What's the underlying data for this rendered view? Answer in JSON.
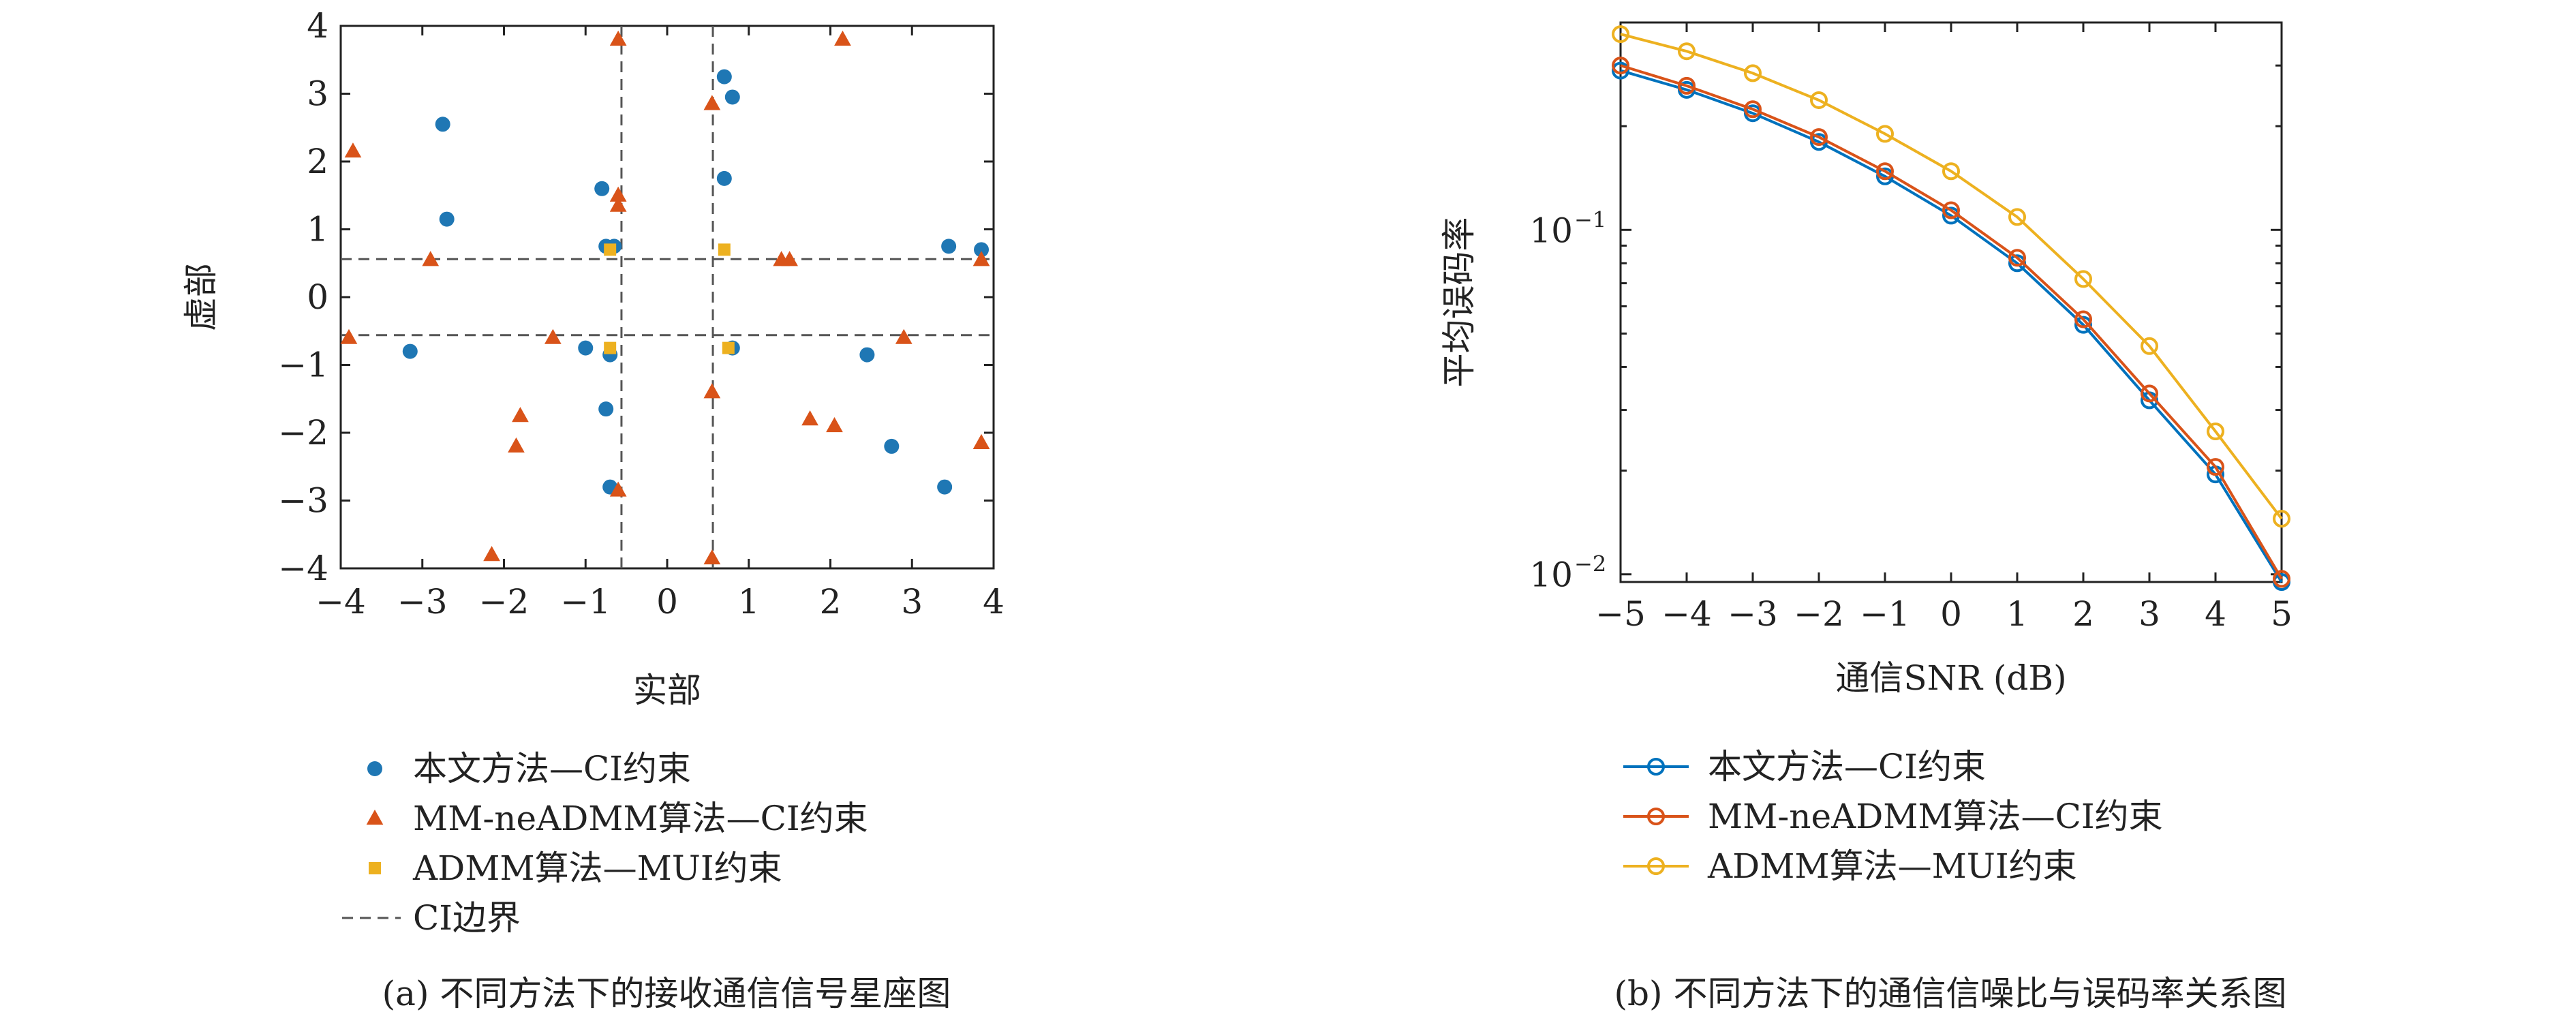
{
  "colors": {
    "blue": "#1f77b4",
    "orange": "#d95319",
    "yellow": "#edb120",
    "teal": "#0072bd",
    "dashed": "#555555"
  },
  "chart_data": [
    {
      "type": "scatter",
      "title": "",
      "caption": "(a) 不同方法下的接收通信信号星座图",
      "xlabel": "实部",
      "ylabel": "虚部",
      "xlim": [
        -4,
        4
      ],
      "ylim": [
        -4,
        4
      ],
      "xticks": [
        -4,
        -3,
        -2,
        -1,
        0,
        1,
        2,
        3,
        4
      ],
      "yticks": [
        -4,
        -3,
        -2,
        -1,
        0,
        1,
        2,
        3,
        4
      ],
      "xtick_labels": [
        "−4",
        "−3",
        "−2",
        "−1",
        "0",
        "1",
        "2",
        "3",
        "4"
      ],
      "ytick_labels": [
        "−4",
        "−3",
        "−2",
        "−1",
        "0",
        "1",
        "2",
        "3",
        "4"
      ],
      "grid": false,
      "legend_position": "below",
      "series": [
        {
          "name": "本文方法—CI约束",
          "marker": "circle",
          "color": "#1f77b4",
          "points": [
            [
              -2.75,
              2.55
            ],
            [
              -2.7,
              1.15
            ],
            [
              -0.8,
              1.6
            ],
            [
              -0.75,
              0.75
            ],
            [
              -0.65,
              0.75
            ],
            [
              0.7,
              3.25
            ],
            [
              0.8,
              2.95
            ],
            [
              0.7,
              1.75
            ],
            [
              3.45,
              0.75
            ],
            [
              3.85,
              0.7
            ],
            [
              -3.15,
              -0.8
            ],
            [
              -1.0,
              -0.75
            ],
            [
              -0.7,
              -0.85
            ],
            [
              -0.75,
              -1.65
            ],
            [
              -0.7,
              -2.8
            ],
            [
              0.8,
              -0.75
            ],
            [
              2.45,
              -0.85
            ],
            [
              2.75,
              -2.2
            ],
            [
              3.4,
              -2.8
            ]
          ]
        },
        {
          "name": "MM-neADMM算法—CI约束",
          "marker": "triangle",
          "color": "#d95319",
          "points": [
            [
              -3.85,
              2.15
            ],
            [
              -2.9,
              0.55
            ],
            [
              -0.6,
              3.8
            ],
            [
              -0.6,
              1.5
            ],
            [
              -0.6,
              1.35
            ],
            [
              0.55,
              2.85
            ],
            [
              2.15,
              3.8
            ],
            [
              1.4,
              0.55
            ],
            [
              1.5,
              0.55
            ],
            [
              3.85,
              0.55
            ],
            [
              -3.9,
              -0.6
            ],
            [
              -1.4,
              -0.6
            ],
            [
              -1.8,
              -1.75
            ],
            [
              -1.85,
              -2.2
            ],
            [
              -2.15,
              -3.8
            ],
            [
              -0.6,
              -2.85
            ],
            [
              0.55,
              -1.4
            ],
            [
              0.55,
              -3.85
            ],
            [
              1.75,
              -1.8
            ],
            [
              2.05,
              -1.9
            ],
            [
              2.9,
              -0.6
            ],
            [
              3.85,
              -2.15
            ]
          ]
        },
        {
          "name": "ADMM算法—MUI约束",
          "marker": "square",
          "color": "#edb120",
          "points": [
            [
              -0.7,
              0.7
            ],
            [
              0.7,
              0.7
            ],
            [
              -0.7,
              -0.75
            ],
            [
              0.75,
              -0.75
            ]
          ]
        }
      ],
      "boundary": {
        "name": "CI边界",
        "x": [
          -0.56,
          0.56
        ],
        "y": [
          -0.56,
          0.56
        ]
      }
    },
    {
      "type": "line",
      "title": "",
      "caption": "(b) 不同方法下的通信信噪比与误码率关系图",
      "xlabel": "通信SNR (dB)",
      "ylabel": "平均误码率",
      "xlim": [
        -5,
        5
      ],
      "ylim": [
        0.0095,
        0.4
      ],
      "yscale": "log",
      "x": [
        -5,
        -4,
        -3,
        -2,
        -1,
        0,
        1,
        2,
        3,
        4,
        5
      ],
      "xtick_labels": [
        "−5",
        "−4",
        "−3",
        "−2",
        "−1",
        "0",
        "1",
        "2",
        "3",
        "4",
        "5"
      ],
      "ytick_labels": [
        {
          "mantissa": "10",
          "exp": "−1"
        },
        {
          "mantissa": "10",
          "exp": "−2"
        }
      ],
      "grid": false,
      "legend_position": "below",
      "series": [
        {
          "name": "本文方法—CI约束",
          "color": "#0072bd",
          "values": [
            0.29,
            0.255,
            0.218,
            0.18,
            0.143,
            0.11,
            0.08,
            0.053,
            0.032,
            0.0195,
            0.0095
          ]
        },
        {
          "name": "MM-neADMM算法—CI约束",
          "color": "#d95319",
          "values": [
            0.3,
            0.262,
            0.224,
            0.186,
            0.148,
            0.114,
            0.083,
            0.055,
            0.0335,
            0.0205,
            0.0097
          ]
        },
        {
          "name": "ADMM算法—MUI约束",
          "color": "#edb120",
          "values": [
            0.37,
            0.33,
            0.285,
            0.238,
            0.19,
            0.148,
            0.109,
            0.072,
            0.046,
            0.026,
            0.0145
          ]
        }
      ]
    }
  ]
}
